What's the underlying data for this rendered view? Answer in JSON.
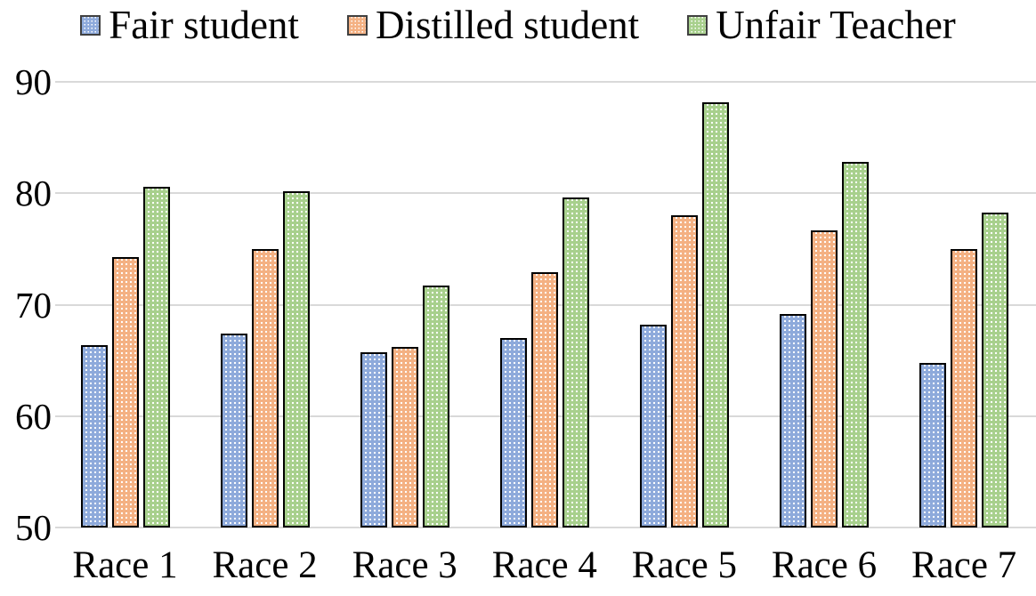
{
  "chart_data": {
    "type": "bar",
    "title": "",
    "xlabel": "",
    "ylabel": "",
    "categories": [
      "Race 1",
      "Race 2",
      "Race 3",
      "Race 4",
      "Race 5",
      "Race 6",
      "Race 7"
    ],
    "series": [
      {
        "name": "Fair student",
        "color": "#8EAADB",
        "values": [
          66.4,
          67.4,
          65.7,
          67.0,
          68.2,
          69.2,
          64.8
        ]
      },
      {
        "name": "Distilled student",
        "color": "#F4B183",
        "values": [
          74.3,
          75.0,
          66.2,
          72.9,
          78.0,
          76.7,
          75.0
        ]
      },
      {
        "name": "Unfair Teacher",
        "color": "#A8D08D",
        "values": [
          80.6,
          80.2,
          71.7,
          79.6,
          88.2,
          82.8,
          78.3
        ]
      }
    ],
    "ylim": [
      50,
      90
    ],
    "yticks": [
      50,
      60,
      70,
      80,
      90
    ],
    "grid": true,
    "legend_position": "top",
    "bar_pattern": "white-dot-grid",
    "bar_outline_color": "#000000",
    "gridline_color": "#d9d9d9"
  }
}
